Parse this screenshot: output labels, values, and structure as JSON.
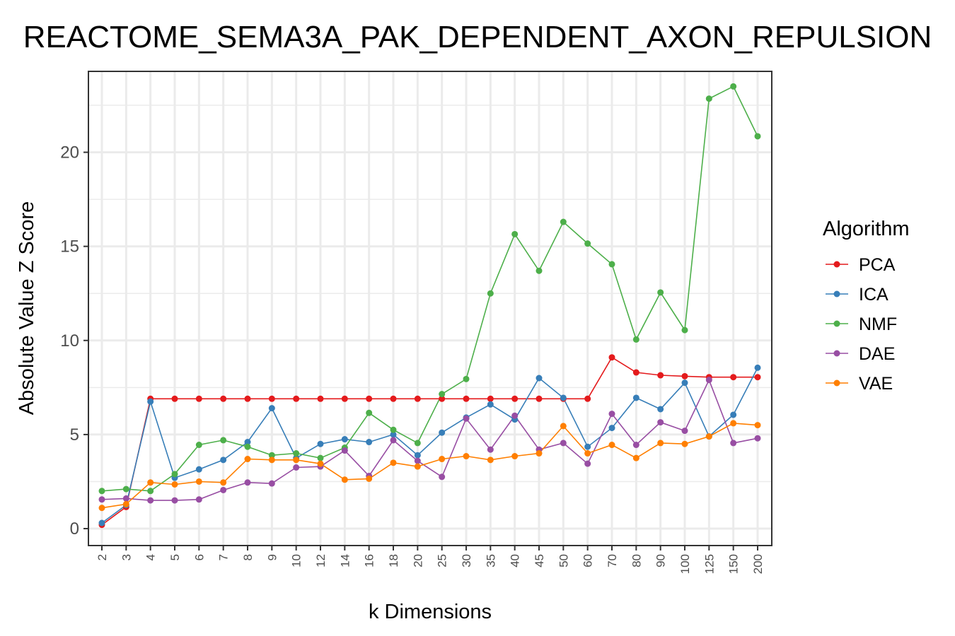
{
  "chart_data": {
    "type": "line",
    "title": "REACTOME_SEMA3A_PAK_DEPENDENT_AXON_REPULSION",
    "xlabel": "k Dimensions",
    "ylabel": "Absolute Value Z Score",
    "categories": [
      "2",
      "3",
      "4",
      "5",
      "6",
      "7",
      "8",
      "9",
      "10",
      "12",
      "14",
      "16",
      "18",
      "20",
      "25",
      "30",
      "35",
      "40",
      "45",
      "50",
      "60",
      "70",
      "80",
      "90",
      "100",
      "125",
      "150",
      "200"
    ],
    "ylim": [
      -0.9,
      24.3
    ],
    "yticks": [
      0,
      5,
      10,
      15,
      20
    ],
    "grid": true,
    "legend": {
      "title": "Algorithm",
      "position": "right"
    },
    "series": [
      {
        "name": "PCA",
        "color": "#e41a1c",
        "values": [
          0.2,
          1.15,
          6.9,
          6.9,
          6.9,
          6.9,
          6.9,
          6.9,
          6.9,
          6.9,
          6.9,
          6.9,
          6.9,
          6.9,
          6.9,
          6.9,
          6.9,
          6.9,
          6.9,
          6.9,
          6.9,
          9.1,
          8.3,
          8.15,
          8.1,
          8.05,
          8.05,
          8.05
        ]
      },
      {
        "name": "ICA",
        "color": "#377eb8",
        "values": [
          0.3,
          1.25,
          6.75,
          2.7,
          3.15,
          3.65,
          4.6,
          6.4,
          3.75,
          4.5,
          4.75,
          4.6,
          5.0,
          3.9,
          5.1,
          5.9,
          6.6,
          5.8,
          8.0,
          6.95,
          4.35,
          5.35,
          6.95,
          6.35,
          7.75,
          4.9,
          6.05,
          8.55
        ]
      },
      {
        "name": "NMF",
        "color": "#4daf4a",
        "values": [
          2.0,
          2.1,
          2.0,
          2.9,
          4.45,
          4.7,
          4.35,
          3.9,
          4.0,
          3.75,
          4.3,
          6.15,
          5.25,
          4.55,
          7.15,
          7.95,
          12.5,
          15.65,
          13.7,
          16.3,
          15.15,
          14.05,
          10.05,
          12.55,
          10.55,
          22.85,
          23.5,
          20.85
        ]
      },
      {
        "name": "DAE",
        "color": "#984ea3",
        "values": [
          1.55,
          1.6,
          1.5,
          1.5,
          1.55,
          2.05,
          2.45,
          2.4,
          3.25,
          3.3,
          4.15,
          2.8,
          4.7,
          3.6,
          2.75,
          5.85,
          4.2,
          6.0,
          4.2,
          4.55,
          3.45,
          6.1,
          4.45,
          5.65,
          5.2,
          7.9,
          4.55,
          4.8
        ]
      },
      {
        "name": "VAE",
        "color": "#ff7f00",
        "values": [
          1.1,
          1.3,
          2.45,
          2.35,
          2.5,
          2.45,
          3.7,
          3.65,
          3.65,
          3.45,
          2.6,
          2.65,
          3.5,
          3.3,
          3.7,
          3.85,
          3.65,
          3.85,
          4.0,
          5.45,
          4.0,
          4.45,
          3.75,
          4.55,
          4.5,
          4.9,
          5.6,
          5.5
        ]
      }
    ]
  }
}
